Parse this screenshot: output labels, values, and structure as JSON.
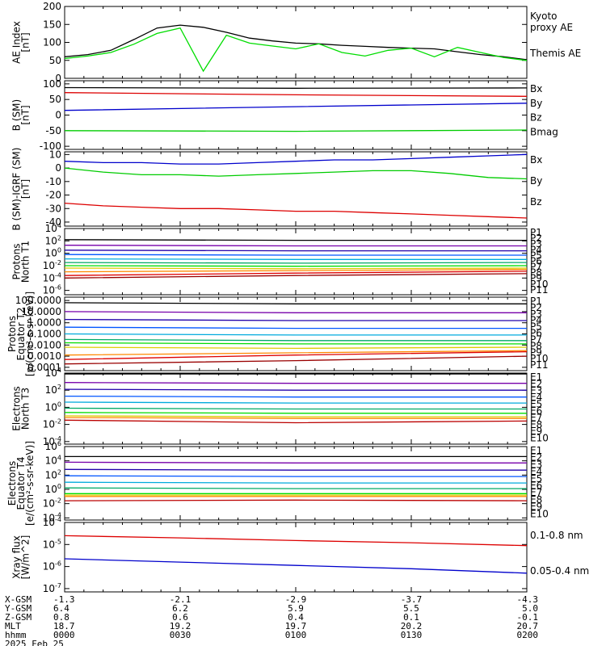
{
  "footer": {
    "rows": [
      {
        "label": "X-GSM",
        "values": [
          "-1.3",
          "-2.1",
          "-2.9",
          "-3.7",
          "-4.3"
        ]
      },
      {
        "label": "Y-GSM",
        "values": [
          "6.4",
          "6.2",
          "5.9",
          "5.5",
          "5.0"
        ]
      },
      {
        "label": "Z-GSM",
        "values": [
          "0.8",
          "0.6",
          "0.4",
          "0.1",
          "-0.1"
        ]
      },
      {
        "label": "MLT",
        "values": [
          "18.7",
          "19.2",
          "19.7",
          "20.2",
          "20.7"
        ]
      },
      {
        "label": "hhmm",
        "values": [
          "0000",
          "0030",
          "0100",
          "0130",
          "0200"
        ]
      }
    ],
    "date": "2025 Feb 25"
  },
  "chart_data": [
    {
      "type": "line",
      "ylabel": [
        "AE Index",
        "[nT]"
      ],
      "ylim": [
        0,
        200
      ],
      "yticks": [
        "0",
        "50",
        "100",
        "150",
        "200"
      ],
      "x": [
        0,
        6,
        12,
        18,
        24,
        30,
        36,
        42,
        48,
        54,
        60,
        66,
        72,
        78,
        84,
        90,
        96,
        102,
        108,
        114,
        120
      ],
      "series": [
        {
          "name": "Themis AE",
          "color": "#000000",
          "values": [
            60,
            66,
            78,
            108,
            140,
            148,
            142,
            128,
            112,
            104,
            98,
            96,
            92,
            89,
            86,
            84,
            82,
            74,
            66,
            60,
            52
          ]
        },
        {
          "name": "Kyoto proxy AE",
          "color": "#00dd00",
          "values": [
            55,
            62,
            72,
            95,
            125,
            140,
            20,
            120,
            98,
            90,
            82,
            96,
            72,
            62,
            78,
            84,
            60,
            86,
            72,
            58,
            50
          ]
        }
      ],
      "legend": [
        {
          "text": "Kyoto",
          "color": "#00dd00"
        },
        {
          "text": "proxy AE",
          "color": "#00dd00"
        },
        {
          "text": "Themis AE",
          "color": "#000000"
        }
      ]
    },
    {
      "type": "line",
      "ylabel": [
        "B (SM)",
        "[nT]"
      ],
      "ylim": [
        -110,
        110
      ],
      "yticks": [
        "-100",
        "-50",
        "0",
        "50",
        "100"
      ],
      "x": [
        0,
        60,
        120
      ],
      "series": [
        {
          "name": "Bx",
          "color": "#0000cc",
          "values": [
            15,
            27,
            38
          ]
        },
        {
          "name": "By",
          "color": "#00cc00",
          "values": [
            -50,
            -52,
            -48
          ]
        },
        {
          "name": "Bz",
          "color": "#dd0000",
          "values": [
            72,
            65,
            60
          ]
        },
        {
          "name": "Bmag",
          "color": "#000000",
          "values": [
            88,
            86,
            87
          ]
        }
      ],
      "legend": [
        {
          "text": "Bx",
          "color": "#0000cc"
        },
        {
          "text": "By",
          "color": "#00cc00"
        },
        {
          "text": "Bz",
          "color": "#dd0000"
        },
        {
          "text": "Bmag",
          "color": "#000000"
        }
      ]
    },
    {
      "type": "line",
      "ylabel": [
        "B (SM)-IGRF (SM)",
        "[nT]"
      ],
      "ylim": [
        -43,
        12
      ],
      "yticks": [
        "-40",
        "-30",
        "-20",
        "-10",
        "0",
        "10"
      ],
      "x": [
        0,
        10,
        20,
        30,
        40,
        50,
        60,
        70,
        80,
        90,
        100,
        110,
        120
      ],
      "series": [
        {
          "name": "Bx",
          "color": "#0000cc",
          "values": [
            5,
            4,
            4,
            3,
            3,
            4,
            5,
            6,
            6,
            7,
            8,
            9,
            10
          ]
        },
        {
          "name": "By",
          "color": "#00cc00",
          "values": [
            0,
            -3,
            -5,
            -5,
            -6,
            -5,
            -4,
            -3,
            -2,
            -2,
            -4,
            -7,
            -8
          ]
        },
        {
          "name": "Bz",
          "color": "#dd0000",
          "values": [
            -26,
            -28,
            -29,
            -30,
            -30,
            -31,
            -32,
            -32,
            -33,
            -34,
            -35,
            -36,
            -37
          ]
        }
      ],
      "legend": [
        {
          "text": "Bx",
          "color": "#0000cc"
        },
        {
          "text": "By",
          "color": "#00cc00"
        },
        {
          "text": "Bz",
          "color": "#dd0000"
        }
      ]
    },
    {
      "type": "line",
      "yscale": "log",
      "ylabel": [
        "Protons",
        "North T1"
      ],
      "ylim": [
        -6.7,
        4.0
      ],
      "yticks": [
        "10^4",
        "10^2",
        "10^0",
        "10^-2",
        "10^-4",
        "10^-6"
      ],
      "x": [
        0,
        60,
        120
      ],
      "series": [
        {
          "name": "P1",
          "color": "#000000",
          "values": [
            2.2,
            2.1,
            2.1
          ]
        },
        {
          "name": "P2",
          "color": "#7700aa",
          "values": [
            1.3,
            1.2,
            1.2
          ]
        },
        {
          "name": "P3",
          "color": "#2200aa",
          "values": [
            0.5,
            0.4,
            0.4
          ]
        },
        {
          "name": "P4",
          "color": "#0055ff",
          "values": [
            -0.2,
            -0.3,
            -0.3
          ]
        },
        {
          "name": "P5",
          "color": "#00aadd",
          "values": [
            -0.9,
            -1.0,
            -1.0
          ]
        },
        {
          "name": "P6",
          "color": "#00aa66",
          "values": [
            -1.5,
            -1.6,
            -1.5
          ]
        },
        {
          "name": "P7",
          "color": "#00dd00",
          "values": [
            -2.0,
            -2.1,
            -2.0
          ]
        },
        {
          "name": "P8",
          "color": "#ddcc00",
          "values": [
            -2.4,
            -2.5,
            -2.4
          ]
        },
        {
          "name": "P9",
          "color": "#ff8800",
          "values": [
            -3.0,
            -2.8,
            -2.6
          ]
        },
        {
          "name": "P10",
          "color": "#dd0000",
          "values": [
            -3.6,
            -3.2,
            -2.9
          ]
        },
        {
          "name": "P11",
          "color": "#990000",
          "values": [
            -4.0,
            -3.6,
            -3.3
          ]
        }
      ],
      "legend": [
        {
          "text": "P1",
          "color": "#000000"
        },
        {
          "text": "P2",
          "color": "#7700aa"
        },
        {
          "text": "P3",
          "color": "#2200aa"
        },
        {
          "text": "P4",
          "color": "#0055ff"
        },
        {
          "text": "P5",
          "color": "#00aadd"
        },
        {
          "text": "P6",
          "color": "#00aa66"
        },
        {
          "text": "P7",
          "color": "#00dd00"
        },
        {
          "text": "P8",
          "color": "#ddcc00"
        },
        {
          "text": "P9",
          "color": "#ff8800"
        },
        {
          "text": "P10",
          "color": "#dd0000"
        },
        {
          "text": "P11",
          "color": "#990000"
        }
      ]
    },
    {
      "type": "line",
      "yscale": "log",
      "ylabel": [
        "Protons",
        "Equator T2",
        "[p/(cm²-s-sr-keV)]"
      ],
      "ylim": [
        -4.3,
        2.3
      ],
      "yticks": [
        "100.0000",
        "10.0000",
        "1.0000",
        "0.1000",
        "0.0100",
        "0.0010",
        "0.0001"
      ],
      "x": [
        0,
        60,
        120
      ],
      "series": [
        {
          "name": "P1",
          "color": "#000000",
          "values": [
            1.8,
            1.7,
            1.7
          ]
        },
        {
          "name": "P2",
          "color": "#7700aa",
          "values": [
            1.0,
            0.9,
            0.9
          ]
        },
        {
          "name": "P3",
          "color": "#2200aa",
          "values": [
            0.3,
            0.2,
            0.2
          ]
        },
        {
          "name": "P4",
          "color": "#0055ff",
          "values": [
            -0.4,
            -0.5,
            -0.5
          ]
        },
        {
          "name": "P5",
          "color": "#00aadd",
          "values": [
            -1.0,
            -1.1,
            -1.1
          ]
        },
        {
          "name": "P6",
          "color": "#00aa66",
          "values": [
            -1.5,
            -1.6,
            -1.6
          ]
        },
        {
          "name": "P7",
          "color": "#00dd00",
          "values": [
            -1.8,
            -1.9,
            -1.9
          ]
        },
        {
          "name": "P8",
          "color": "#ddcc00",
          "values": [
            -2.2,
            -2.3,
            -2.2
          ]
        },
        {
          "name": "P9",
          "color": "#ff8800",
          "values": [
            -2.9,
            -2.7,
            -2.5
          ]
        },
        {
          "name": "P10",
          "color": "#dd0000",
          "values": [
            -3.3,
            -2.9,
            -2.6
          ]
        },
        {
          "name": "P11",
          "color": "#990000",
          "values": [
            -3.7,
            -3.4,
            -3.0
          ]
        }
      ],
      "legend": [
        {
          "text": "P1",
          "color": "#000000"
        },
        {
          "text": "P2",
          "color": "#7700aa"
        },
        {
          "text": "P3",
          "color": "#2200aa"
        },
        {
          "text": "P4",
          "color": "#0055ff"
        },
        {
          "text": "P5",
          "color": "#00aadd"
        },
        {
          "text": "P6",
          "color": "#00aa66"
        },
        {
          "text": "P7",
          "color": "#00dd00"
        },
        {
          "text": "P8",
          "color": "#ddcc00"
        },
        {
          "text": "P9",
          "color": "#ff8800"
        },
        {
          "text": "P10",
          "color": "#dd0000"
        },
        {
          "text": "P11",
          "color": "#990000"
        }
      ]
    },
    {
      "type": "line",
      "yscale": "log",
      "ylabel": [
        "Electrons",
        "North T3"
      ],
      "ylim": [
        -4.3,
        4.0
      ],
      "yticks": [
        "10^4",
        "10^2",
        "10^0",
        "10^-2",
        "10^-4"
      ],
      "x": [
        0,
        60,
        120
      ],
      "series": [
        {
          "name": "E1",
          "color": "#000000",
          "values": [
            3.9,
            3.9,
            3.9
          ]
        },
        {
          "name": "E2",
          "color": "#7700aa",
          "values": [
            2.9,
            2.8,
            2.8
          ]
        },
        {
          "name": "E3",
          "color": "#2200aa",
          "values": [
            2.1,
            2.0,
            2.0
          ]
        },
        {
          "name": "E4",
          "color": "#0055ff",
          "values": [
            1.3,
            1.2,
            1.2
          ]
        },
        {
          "name": "E5",
          "color": "#00aadd",
          "values": [
            0.6,
            0.5,
            0.5
          ]
        },
        {
          "name": "E6",
          "color": "#00aa66",
          "values": [
            -0.1,
            -0.2,
            -0.2
          ]
        },
        {
          "name": "E7",
          "color": "#00dd00",
          "values": [
            -0.6,
            -0.7,
            -0.7
          ]
        },
        {
          "name": "E8",
          "color": "#ddcc00",
          "values": [
            -1.0,
            -1.1,
            -1.1
          ]
        },
        {
          "name": "E9",
          "color": "#ff8800",
          "values": [
            -1.2,
            -1.3,
            -1.3
          ]
        },
        {
          "name": "E10",
          "color": "#bb0000",
          "values": [
            -1.5,
            -1.8,
            -1.6
          ]
        }
      ],
      "legend": [
        {
          "text": "E1",
          "color": "#000000"
        },
        {
          "text": "E2",
          "color": "#7700aa"
        },
        {
          "text": "E3",
          "color": "#2200aa"
        },
        {
          "text": "E4",
          "color": "#0055ff"
        },
        {
          "text": "E5",
          "color": "#00aadd"
        },
        {
          "text": "E6",
          "color": "#00aa66"
        },
        {
          "text": "E7",
          "color": "#00dd00"
        },
        {
          "text": "E8",
          "color": "#ddcc00"
        },
        {
          "text": "E9",
          "color": "#ff8800"
        },
        {
          "text": "E10",
          "color": "#bb0000"
        }
      ]
    },
    {
      "type": "line",
      "yscale": "log",
      "ylabel": [
        "Electrons",
        "Equator T4",
        "[e/(cm²-s-sr-keV)]"
      ],
      "ylim": [
        -4.3,
        6.0
      ],
      "yticks": [
        "10^6",
        "10^4",
        "10^2",
        "10^0",
        "10^-2",
        "10^-4"
      ],
      "x": [
        0,
        60,
        120
      ],
      "series": [
        {
          "name": "E1",
          "color": "#000000",
          "values": [
            4.6,
            4.6,
            4.6
          ]
        },
        {
          "name": "E2",
          "color": "#7700aa",
          "values": [
            3.8,
            3.7,
            3.7
          ]
        },
        {
          "name": "E3",
          "color": "#2200aa",
          "values": [
            2.8,
            2.7,
            2.7
          ]
        },
        {
          "name": "E4",
          "color": "#0055ff",
          "values": [
            1.9,
            1.8,
            1.8
          ]
        },
        {
          "name": "E5",
          "color": "#00aadd",
          "values": [
            1.0,
            0.9,
            0.9
          ]
        },
        {
          "name": "E6",
          "color": "#00aa66",
          "values": [
            0.2,
            0.1,
            0.1
          ]
        },
        {
          "name": "E7",
          "color": "#00dd00",
          "values": [
            -0.6,
            -0.6,
            -0.6
          ]
        },
        {
          "name": "E8",
          "color": "#ddcc00",
          "values": [
            -0.8,
            -0.8,
            -0.8
          ]
        },
        {
          "name": "E9",
          "color": "#ff8800",
          "values": [
            -1.0,
            -1.0,
            -1.0
          ]
        },
        {
          "name": "E10",
          "color": "#bb0000",
          "values": [
            -1.6,
            -1.5,
            -1.6
          ]
        }
      ],
      "legend": [
        {
          "text": "E1",
          "color": "#000000"
        },
        {
          "text": "E2",
          "color": "#7700aa"
        },
        {
          "text": "E3",
          "color": "#2200aa"
        },
        {
          "text": "E4",
          "color": "#0055ff"
        },
        {
          "text": "E5",
          "color": "#00aadd"
        },
        {
          "text": "E6",
          "color": "#00aa66"
        },
        {
          "text": "E7",
          "color": "#00dd00"
        },
        {
          "text": "E8",
          "color": "#ddcc00"
        },
        {
          "text": "E9",
          "color": "#ff8800"
        },
        {
          "text": "E10",
          "color": "#bb0000"
        }
      ]
    },
    {
      "type": "line",
      "yscale": "log",
      "ylabel": [
        "Xray flux",
        "[W/m^2]"
      ],
      "ylim": [
        -7.15,
        -4.0
      ],
      "yticks": [
        "10^-4",
        "10^-5",
        "10^-6",
        "10^-7"
      ],
      "x": [
        0,
        30,
        60,
        90,
        120
      ],
      "series": [
        {
          "name": "0.1-0.8 nm",
          "color": "#dd0000",
          "values": [
            -4.6,
            -4.7,
            -4.82,
            -4.92,
            -5.05
          ]
        },
        {
          "name": "0.05-0.4 nm",
          "color": "#0000cc",
          "values": [
            -5.65,
            -5.8,
            -5.95,
            -6.1,
            -6.3
          ]
        }
      ],
      "legend": [
        {
          "text": "0.1-0.8 nm",
          "color": "#dd0000"
        },
        {
          "text": "0.05-0.4 nm",
          "color": "#0000cc"
        }
      ]
    }
  ]
}
